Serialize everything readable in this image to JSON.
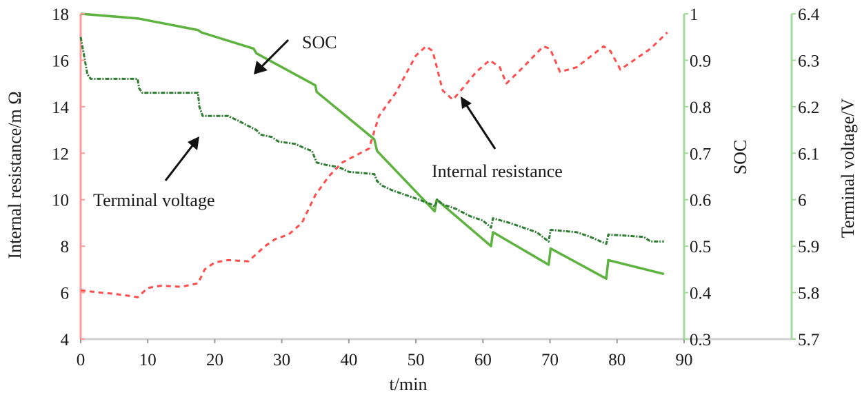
{
  "chart_data": {
    "type": "line",
    "xlabel": "t/min",
    "xlim": [
      0,
      90
    ],
    "xticks": [
      "0",
      "10",
      "20",
      "30",
      "40",
      "50",
      "60",
      "70",
      "80",
      "90"
    ],
    "axes": {
      "resistance": {
        "label": "Internal resistance/m Ω",
        "lim": [
          4,
          18
        ],
        "ticks": [
          "4",
          "6",
          "8",
          "10",
          "12",
          "14",
          "16",
          "18"
        ],
        "color": "#ff4d4d"
      },
      "soc": {
        "label": "SOC",
        "lim": [
          0.3,
          1.0
        ],
        "ticks": [
          "0.3",
          "0.4",
          "0.5",
          "0.6",
          "0.7",
          "0.8",
          "0.9",
          "1"
        ],
        "color": "#8fd08a"
      },
      "voltage": {
        "label": "Terminal voltage/V",
        "lim": [
          5.7,
          6.4
        ],
        "ticks": [
          "5.7",
          "5.8",
          "5.9",
          "6",
          "6.1",
          "6.2",
          "6.3",
          "6.4"
        ],
        "color": "#8fd08a"
      }
    },
    "series": [
      {
        "name": "SOC",
        "axis": "soc",
        "color": "#5db33e",
        "style": "solid",
        "points": [
          [
            0,
            1.0
          ],
          [
            8.5,
            0.99
          ],
          [
            17.5,
            0.965
          ],
          [
            18,
            0.96
          ],
          [
            25.8,
            0.925
          ],
          [
            26.2,
            0.915
          ],
          [
            35,
            0.846
          ],
          [
            35.2,
            0.832
          ],
          [
            43.8,
            0.73
          ],
          [
            44.2,
            0.705
          ],
          [
            52.8,
            0.575
          ],
          [
            53.1,
            0.6
          ],
          [
            61.2,
            0.5
          ],
          [
            61.5,
            0.53
          ],
          [
            69.8,
            0.46
          ],
          [
            70.1,
            0.495
          ],
          [
            78.4,
            0.43
          ],
          [
            78.7,
            0.47
          ],
          [
            87,
            0.44
          ]
        ]
      },
      {
        "name": "Terminal voltage",
        "axis": "voltage",
        "color": "#2e7d32",
        "style": "dotdash",
        "points": [
          [
            0,
            6.35
          ],
          [
            0.5,
            6.31
          ],
          [
            1,
            6.27
          ],
          [
            1.5,
            6.26
          ],
          [
            8.5,
            6.26
          ],
          [
            8.7,
            6.24
          ],
          [
            9.2,
            6.23
          ],
          [
            17.5,
            6.23
          ],
          [
            17.7,
            6.2
          ],
          [
            18.2,
            6.18
          ],
          [
            22,
            6.18
          ],
          [
            23.5,
            6.17
          ],
          [
            25.5,
            6.155
          ],
          [
            26.2,
            6.15
          ],
          [
            26.8,
            6.14
          ],
          [
            28.5,
            6.135
          ],
          [
            29.5,
            6.125
          ],
          [
            32,
            6.12
          ],
          [
            33.5,
            6.11
          ],
          [
            34.5,
            6.105
          ],
          [
            35.2,
            6.08
          ],
          [
            36.5,
            6.075
          ],
          [
            38.5,
            6.07
          ],
          [
            40,
            6.06
          ],
          [
            43.8,
            6.055
          ],
          [
            44.2,
            6.04
          ],
          [
            45,
            6.03
          ],
          [
            46.5,
            6.02
          ],
          [
            48.5,
            6.01
          ],
          [
            50.5,
            6.0
          ],
          [
            52.3,
            5.99
          ],
          [
            52.8,
            5.985
          ],
          [
            53.2,
            6.0
          ],
          [
            54,
            5.99
          ],
          [
            56,
            5.98
          ],
          [
            58,
            5.965
          ],
          [
            60,
            5.955
          ],
          [
            61.2,
            5.94
          ],
          [
            61.5,
            5.96
          ],
          [
            64,
            5.95
          ],
          [
            66,
            5.94
          ],
          [
            68,
            5.93
          ],
          [
            69.8,
            5.91
          ],
          [
            70.1,
            5.935
          ],
          [
            74,
            5.93
          ],
          [
            76,
            5.92
          ],
          [
            78.4,
            5.905
          ],
          [
            78.7,
            5.925
          ],
          [
            84,
            5.92
          ],
          [
            85,
            5.91
          ],
          [
            87,
            5.91
          ]
        ]
      },
      {
        "name": "Internal resistance",
        "axis": "resistance",
        "color": "#ff4d4d",
        "style": "dashed",
        "points": [
          [
            0,
            6.1
          ],
          [
            3,
            6.0
          ],
          [
            5,
            5.95
          ],
          [
            7.5,
            5.85
          ],
          [
            8.5,
            5.8
          ],
          [
            10,
            6.2
          ],
          [
            12,
            6.3
          ],
          [
            15,
            6.25
          ],
          [
            17.5,
            6.4
          ],
          [
            18.5,
            7.0
          ],
          [
            20,
            7.3
          ],
          [
            22,
            7.4
          ],
          [
            25,
            7.35
          ],
          [
            27.5,
            8.0
          ],
          [
            29,
            8.3
          ],
          [
            31,
            8.5
          ],
          [
            33,
            9.0
          ],
          [
            35,
            10.2
          ],
          [
            37,
            11.0
          ],
          [
            39,
            11.6
          ],
          [
            41,
            11.9
          ],
          [
            43,
            12.2
          ],
          [
            44.5,
            13.6
          ],
          [
            47,
            14.6
          ],
          [
            50,
            16.2
          ],
          [
            51.5,
            16.6
          ],
          [
            52.5,
            16.4
          ],
          [
            54,
            14.7
          ],
          [
            55.5,
            14.3
          ],
          [
            57,
            14.8
          ],
          [
            59,
            15.5
          ],
          [
            61,
            16.0
          ],
          [
            62.5,
            15.7
          ],
          [
            63.5,
            15.0
          ],
          [
            66,
            15.7
          ],
          [
            69,
            16.6
          ],
          [
            70,
            16.5
          ],
          [
            71.5,
            15.5
          ],
          [
            74,
            15.7
          ],
          [
            78,
            16.6
          ],
          [
            79,
            16.4
          ],
          [
            80.5,
            15.6
          ],
          [
            83,
            16.1
          ],
          [
            85,
            16.5
          ],
          [
            87.5,
            17.2
          ]
        ]
      }
    ],
    "annotations": {
      "soc": "SOC",
      "terminal_voltage": "Terminal voltage",
      "internal_resistance": "Internal resistance"
    }
  }
}
